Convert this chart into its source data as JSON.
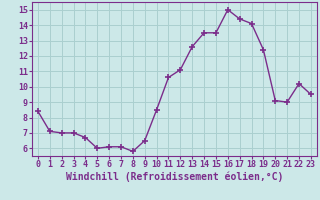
{
  "hours": [
    0,
    1,
    2,
    3,
    4,
    5,
    6,
    7,
    8,
    9,
    10,
    11,
    12,
    13,
    14,
    15,
    16,
    17,
    18,
    19,
    20,
    21,
    22,
    23
  ],
  "values": [
    8.4,
    7.1,
    7.0,
    7.0,
    6.7,
    6.0,
    6.1,
    6.1,
    5.8,
    6.5,
    8.5,
    10.6,
    11.1,
    12.6,
    13.5,
    13.5,
    15.0,
    14.4,
    14.1,
    12.4,
    9.1,
    9.0,
    10.2,
    9.5
  ],
  "line_color": "#7B2D8B",
  "marker": "+",
  "marker_size": 4,
  "bg_color": "#cce8e8",
  "grid_color": "#aacfcf",
  "xlabel": "Windchill (Refroidissement éolien,°C)",
  "ylim": [
    5.5,
    15.5
  ],
  "yticks": [
    6,
    7,
    8,
    9,
    10,
    11,
    12,
    13,
    14,
    15
  ],
  "xticks": [
    0,
    1,
    2,
    3,
    4,
    5,
    6,
    7,
    8,
    9,
    10,
    11,
    12,
    13,
    14,
    15,
    16,
    17,
    18,
    19,
    20,
    21,
    22,
    23
  ],
  "tick_label_fontsize": 6,
  "xlabel_fontsize": 7,
  "text_color": "#7B2D8B",
  "linewidth": 1.0,
  "marker_linewidth": 1.2
}
